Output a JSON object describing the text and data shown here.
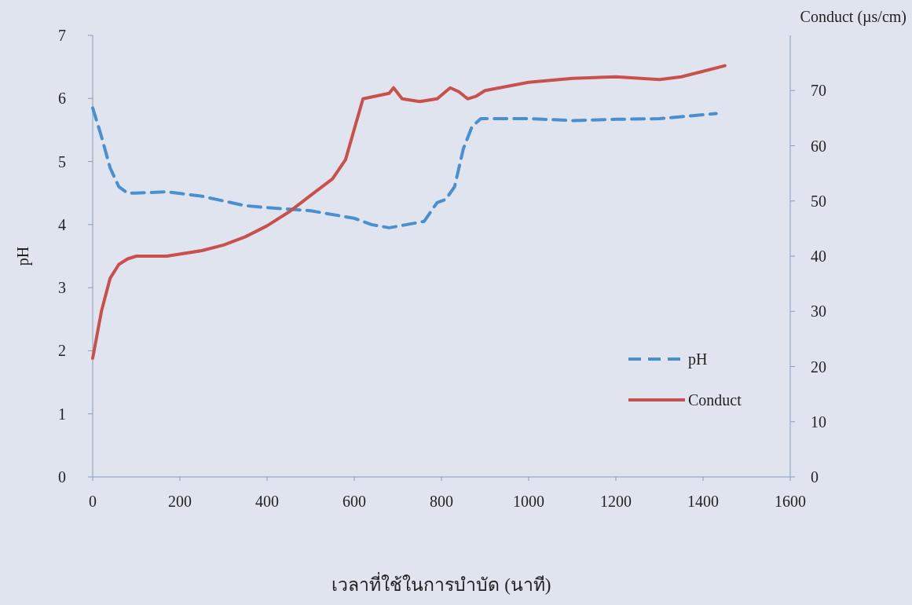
{
  "chart_data": {
    "type": "line",
    "xlabel": "เวลาที่ใช้ในการบำบัด (นาที)",
    "ylabel": "pH",
    "y2label": "Conduct (µs/cm)",
    "xlim": [
      0,
      1600
    ],
    "xticks": [
      0,
      200,
      400,
      600,
      800,
      1000,
      1200,
      1400,
      1600
    ],
    "ylim": [
      0,
      7
    ],
    "yticks": [
      0,
      1,
      2,
      3,
      4,
      5,
      6,
      7
    ],
    "y2lim": [
      0,
      80
    ],
    "y2ticks": [
      0,
      10,
      20,
      30,
      40,
      50,
      60,
      70
    ],
    "legend": "bottom right",
    "grid": false,
    "series": [
      {
        "name": "pH",
        "color": "#4a90d0",
        "line_style": "dashed",
        "axis": "y",
        "x": [
          0,
          20,
          40,
          60,
          80,
          100,
          170,
          250,
          350,
          400,
          500,
          600,
          640,
          680,
          720,
          760,
          790,
          810,
          830,
          850,
          870,
          890,
          1000,
          1100,
          1200,
          1300,
          1430
        ],
        "values": [
          5.85,
          5.4,
          4.9,
          4.6,
          4.5,
          4.5,
          4.52,
          4.45,
          4.3,
          4.27,
          4.22,
          4.1,
          4.0,
          3.95,
          4.0,
          4.05,
          4.35,
          4.4,
          4.6,
          5.2,
          5.55,
          5.68,
          5.68,
          5.65,
          5.67,
          5.68,
          5.76
        ]
      },
      {
        "name": "Conduct",
        "color": "#c9504b",
        "line_style": "solid",
        "axis": "y2",
        "x": [
          0,
          20,
          40,
          60,
          80,
          100,
          170,
          250,
          300,
          350,
          400,
          450,
          500,
          550,
          580,
          600,
          620,
          650,
          680,
          690,
          710,
          750,
          790,
          820,
          840,
          860,
          880,
          900,
          1000,
          1100,
          1200,
          1300,
          1350,
          1400,
          1450
        ],
        "values": [
          21.5,
          30,
          36,
          38.5,
          39.5,
          40,
          40,
          41,
          42,
          43.5,
          45.5,
          48,
          51,
          54,
          57.5,
          63,
          68.5,
          69,
          69.5,
          70.5,
          68.5,
          68,
          68.5,
          70.5,
          69.8,
          68.5,
          69,
          70,
          71.5,
          72.2,
          72.5,
          72,
          72.5,
          73.5,
          74.5
        ]
      }
    ]
  }
}
